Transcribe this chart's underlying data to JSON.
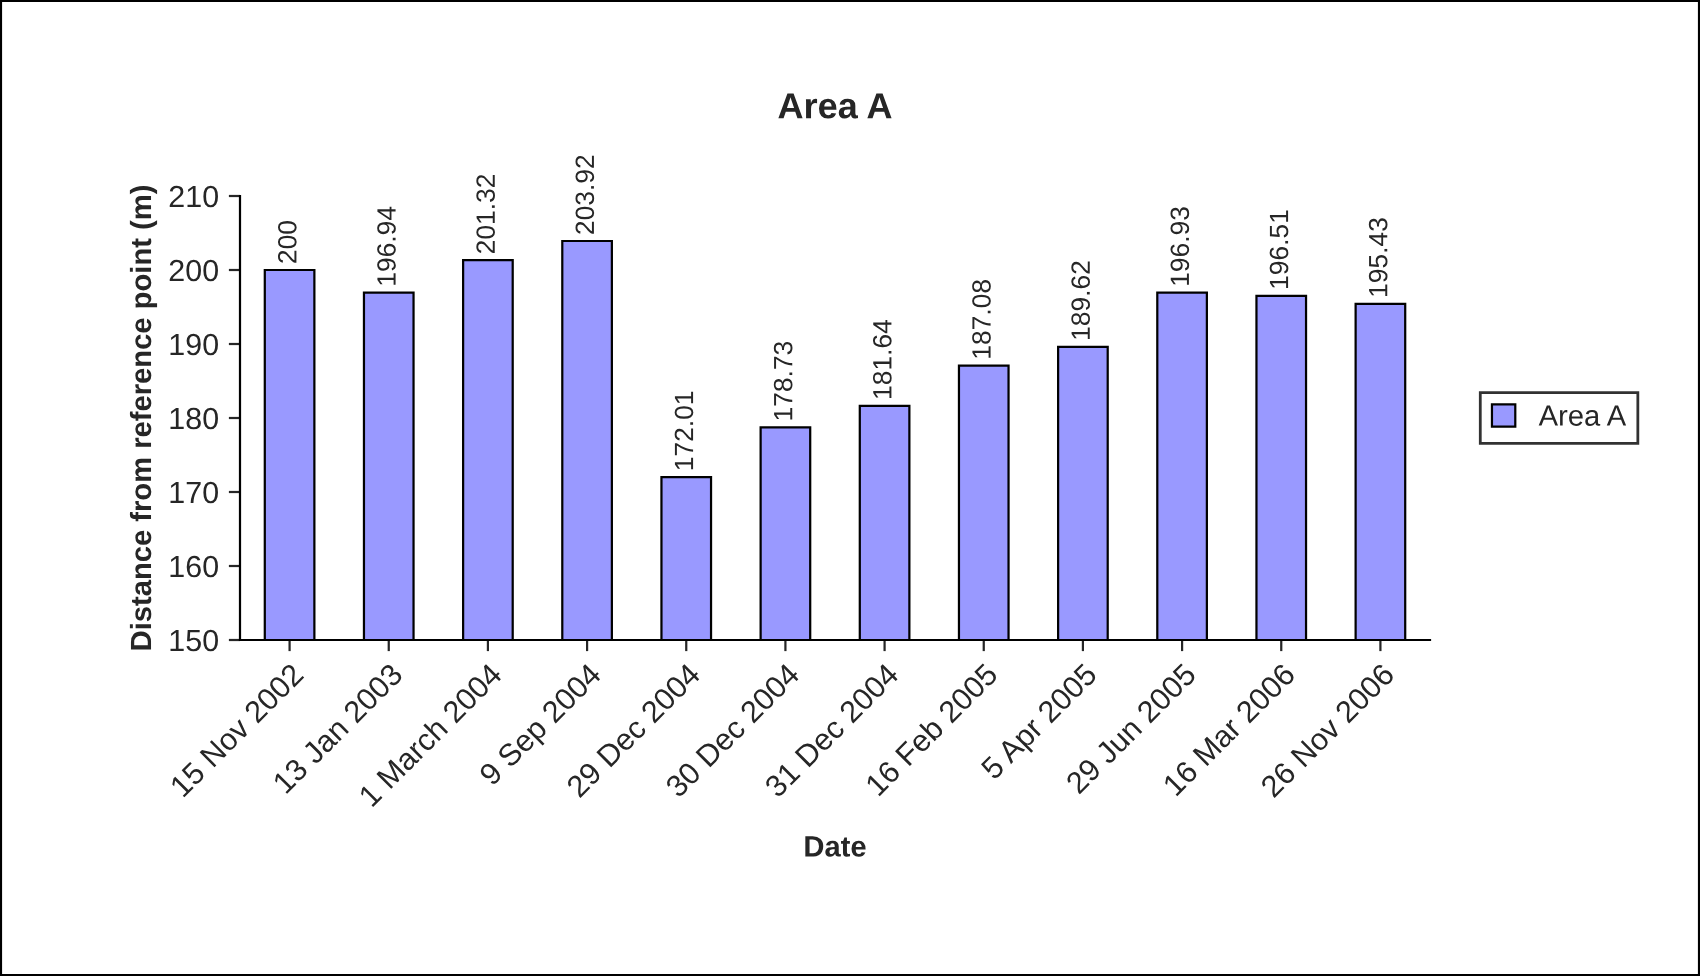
{
  "chart_data": {
    "type": "bar",
    "title": "Area A",
    "xlabel": "Date",
    "ylabel": "Distance from reference point (m)",
    "categories": [
      "15 Nov 2002",
      "13 Jan 2003",
      "1 March 2004",
      "9 Sep 2004",
      "29 Dec 2004",
      "30 Dec 2004",
      "31 Dec 2004",
      "16 Feb 2005",
      "5 Apr 2005",
      "29 Jun 2005",
      "16 Mar 2006",
      "26 Nov 2006"
    ],
    "series": [
      {
        "name": "Area A",
        "color": "#9999ff",
        "values": [
          200,
          196.94,
          201.32,
          203.92,
          172.01,
          178.73,
          181.64,
          187.08,
          189.62,
          196.93,
          196.51,
          195.43
        ]
      }
    ],
    "ylim": [
      150,
      210
    ],
    "yticks": [
      150,
      160,
      170,
      180,
      190,
      200,
      210
    ],
    "grid": false,
    "legend": "right",
    "data_labels": true
  }
}
